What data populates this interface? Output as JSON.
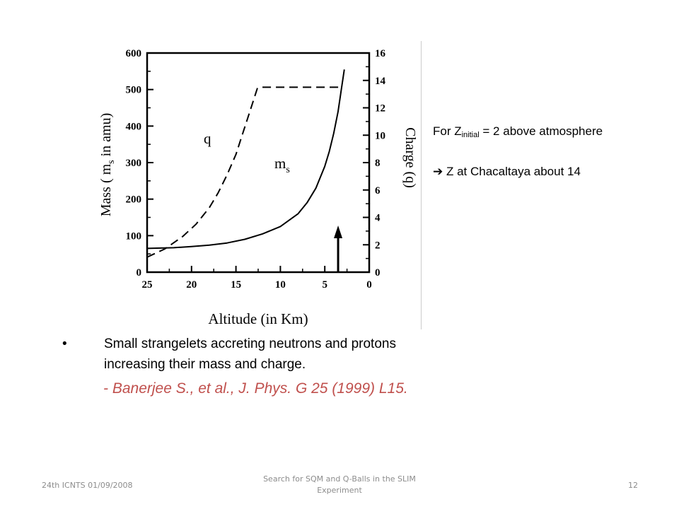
{
  "figure": {
    "left_axis_label_prefix": "Mass ( m",
    "left_axis_label_sub": "s",
    "left_axis_label_suffix": " in amu)",
    "right_axis_label": "Charge (q)",
    "x_axis_label": "Altitude (in Km)",
    "curve_label_q": "q",
    "curve_label_m": "m",
    "curve_label_m_sub": "s",
    "left_ticks": [
      "0",
      "100",
      "200",
      "300",
      "400",
      "500",
      "600"
    ],
    "right_ticks": [
      "0",
      "2",
      "4",
      "6",
      "8",
      "10",
      "12",
      "14",
      "16"
    ],
    "x_ticks": [
      "25",
      "20",
      "15",
      "10",
      "5",
      "0"
    ]
  },
  "chart_data": {
    "type": "line",
    "title": "",
    "xlabel": "Altitude (in Km)",
    "ylabel": "Mass ( ms in amu)",
    "y2label": "Charge (q)",
    "xlim": [
      25,
      0
    ],
    "ylim": [
      0,
      600
    ],
    "y2lim": [
      0,
      16
    ],
    "grid": false,
    "legend": "none",
    "series": [
      {
        "name": "q",
        "axis": "right",
        "style": "dashed",
        "x": [
          25,
          23,
          21,
          19.5,
          18,
          17,
          16,
          15,
          14.2,
          13.4,
          12.6,
          12.3,
          9,
          6,
          3.2
        ],
        "y": [
          1.1,
          1.7,
          2.6,
          3.5,
          4.7,
          5.8,
          7.1,
          8.6,
          10.2,
          11.8,
          13.4,
          13.5,
          13.5,
          13.5,
          13.5
        ]
      },
      {
        "name": "ms",
        "axis": "left",
        "style": "solid",
        "x": [
          25,
          22,
          20,
          18,
          16,
          14,
          12,
          10,
          8,
          7,
          6,
          5,
          4.5,
          4,
          3.5,
          3.2,
          2.8
        ],
        "y": [
          65,
          67,
          70,
          74,
          80,
          90,
          105,
          125,
          160,
          190,
          230,
          290,
          330,
          380,
          440,
          490,
          555
        ]
      }
    ],
    "annotations": [
      {
        "type": "arrow",
        "x": 3.5,
        "y_from": 0,
        "y_to": 120
      }
    ]
  },
  "side_note": {
    "line1_prefix": "For Z",
    "line1_sub": "initial",
    "line1_suffix": " = 2  above atmosphere",
    "line2_arrow": "➔",
    "line2_text": " Z at Chacaltaya  about 14"
  },
  "bullet": {
    "dot": "•",
    "text_line1": "Small strangelets accreting neutrons and protons",
    "text_line2": "increasing their mass and charge.",
    "citation": "- Banerjee S., et al., J. Phys. G 25 (1999) L15."
  },
  "footer": {
    "left": "24th ICNTS 01/09/2008",
    "center": "Search for SQM and Q-Balls in the SLIM Experiment",
    "right": "12"
  }
}
